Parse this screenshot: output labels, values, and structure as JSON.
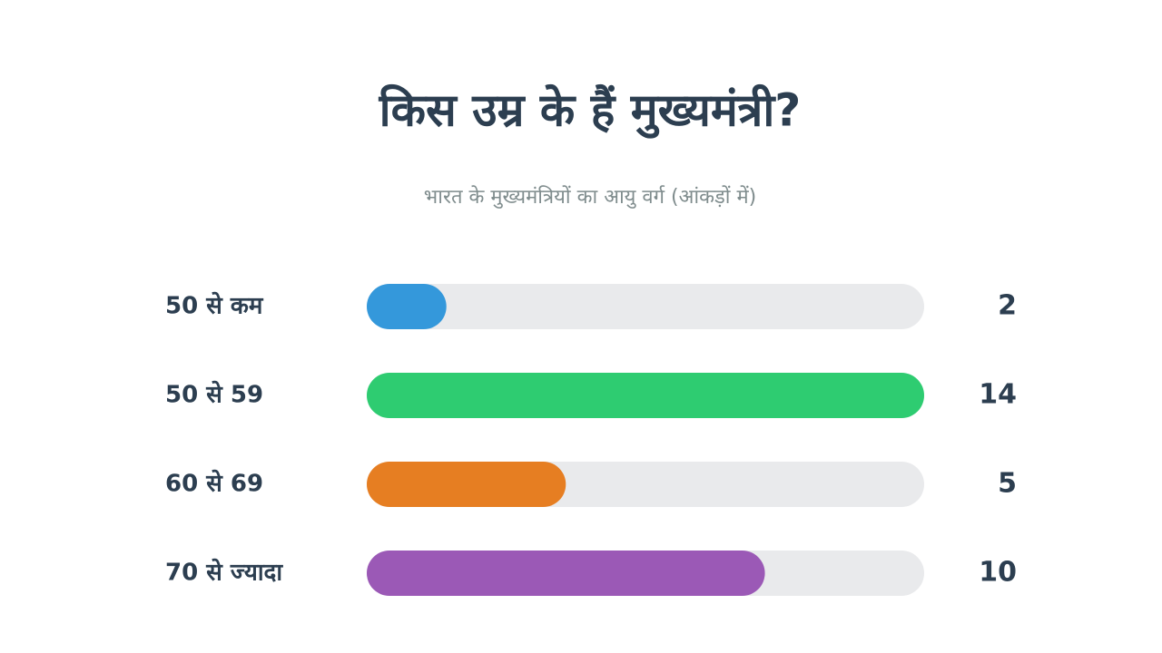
{
  "chart_data": {
    "type": "bar",
    "title": "किस उम्र के हैं मुख्यमंत्री?",
    "subtitle": "भारत के मुख्यमंत्रियों का आयु वर्ग (आंकड़ों में)",
    "categories": [
      "50 से कम",
      "50 से 59",
      "60 से 69",
      "70 से ज्यादा"
    ],
    "values": [
      2,
      14,
      5,
      10
    ],
    "colors": [
      "#3498db",
      "#2ecc71",
      "#e67e22",
      "#9b59b6"
    ],
    "track_color": "#e9eaec"
  }
}
